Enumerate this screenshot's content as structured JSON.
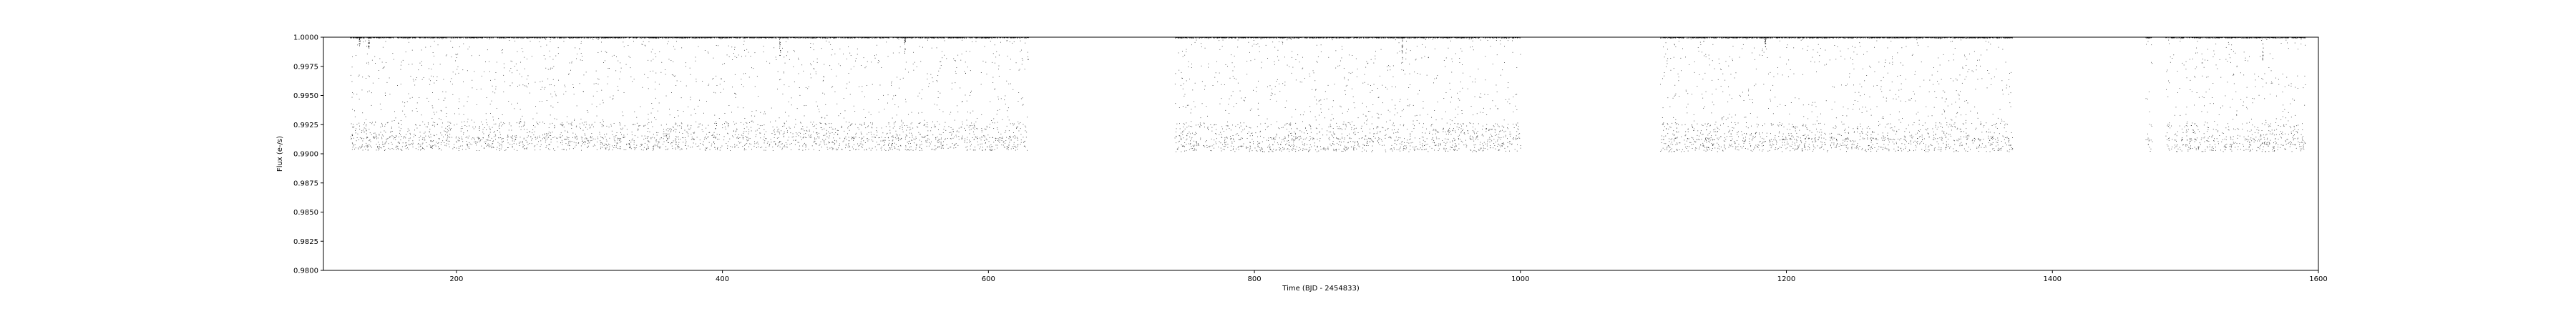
{
  "chart_data": {
    "type": "scatter",
    "title": "",
    "xlabel": "Time (BJD - 2454833)",
    "ylabel": "Flux (e-/s)",
    "xlim": [
      100,
      1600
    ],
    "ylim": [
      0.98,
      1.0
    ],
    "xticks": [
      "200",
      "400",
      "600",
      "800",
      "1000",
      "1200",
      "1400",
      "1600"
    ],
    "yticks": [
      "0.9800",
      "0.9825",
      "0.9850",
      "0.9875",
      "0.9900",
      "0.9925",
      "0.9950",
      "0.9975",
      "1.0000"
    ],
    "grid": false,
    "series": [
      {
        "marker_color": "#000000",
        "segments": [
          {
            "x_start": 120,
            "x_end": 630,
            "flux_min": 0.9903,
            "flux_max": 1.0
          },
          {
            "x_start": 740,
            "x_end": 1000,
            "flux_min": 0.9902,
            "flux_max": 1.0
          },
          {
            "x_start": 1105,
            "x_end": 1370,
            "flux_min": 0.9902,
            "flux_max": 1.0
          },
          {
            "x_start": 1470,
            "x_end": 1475,
            "flux_min": 0.9902,
            "flux_max": 1.0
          },
          {
            "x_start": 1485,
            "x_end": 1590,
            "flux_min": 0.9902,
            "flux_max": 1.0
          }
        ],
        "dips": [
          {
            "x": 127,
            "min_flux": 0.9992
          },
          {
            "x": 134,
            "min_flux": 0.999
          },
          {
            "x": 443,
            "min_flux": 0.9981
          },
          {
            "x": 537,
            "min_flux": 0.9986
          },
          {
            "x": 911,
            "min_flux": 0.9978
          },
          {
            "x": 1184,
            "min_flux": 0.9992
          },
          {
            "x": 1558,
            "min_flux": 0.998
          }
        ]
      }
    ]
  }
}
